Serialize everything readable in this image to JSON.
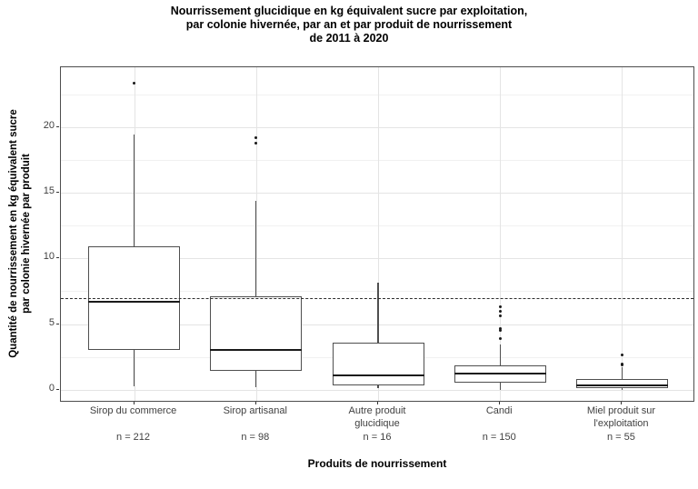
{
  "title": {
    "lines": [
      "Nourrissement glucidique en kg équivalent sucre par exploitation,",
      "par colonie hivernée, par an et par produit de nourrissement",
      "de 2011 à 2020"
    ]
  },
  "y_axis": {
    "title_lines": [
      "Quantité de nourrissement en kg équivalent sucre",
      "par colonie hivernée par produit"
    ],
    "major_ticks": [
      0,
      5,
      10,
      15,
      20
    ],
    "minor_ticks": [
      2.5,
      7.5,
      12.5,
      17.5,
      22.5
    ],
    "range": [
      -1.0,
      24.6
    ]
  },
  "x_axis": {
    "title": "Produits de nourrissement"
  },
  "reference_line": {
    "value": 7,
    "style": "dashed"
  },
  "colors": {
    "panel_border": "#4d4d4d",
    "grid_major": "#e4e4e4",
    "grid_minor": "#f1f1f1",
    "box_border": "#4f4f4f",
    "median": "#1a1a1a",
    "outlier": "#1a1a1a",
    "reference": "#2e2e2e",
    "tick_text": "#404040",
    "title_text": "#000000"
  },
  "chart_data": {
    "type": "boxplot",
    "title": "Nourrissement glucidique en kg équivalent sucre par exploitation, par colonie hivernée, par an et par produit de nourrissement de 2011 à 2020",
    "xlabel": "Produits de nourrissement",
    "ylabel": "Quantité de nourrissement en kg équivalent sucre par colonie hivernée par produit",
    "ylim": [
      -1.0,
      24.6
    ],
    "grid": true,
    "reference_line_y": 7,
    "categories": [
      "Sirop du commerce",
      "Sirop artisanal",
      "Autre produit glucidique",
      "Candi",
      "Miel produit sur l'exploitation"
    ],
    "boxes": [
      {
        "label_lines": [
          "Sirop du commerce"
        ],
        "n_label": "n = 212",
        "whisker_low": 0.25,
        "q1": 3.05,
        "median": 6.7,
        "q3": 10.9,
        "whisker_high": 19.5,
        "outliers": [
          23.4
        ]
      },
      {
        "label_lines": [
          "Sirop artisanal"
        ],
        "n_label": "n = 98",
        "whisker_low": 0.2,
        "q1": 1.4,
        "median": 3.05,
        "q3": 7.1,
        "whisker_high": 14.4,
        "outliers": [
          18.8,
          19.2
        ]
      },
      {
        "label_lines": [
          "Autre produit",
          "glucidique"
        ],
        "n_label": "n = 16",
        "whisker_low": 0.1,
        "q1": 0.3,
        "median": 1.1,
        "q3": 3.6,
        "whisker_high": 8.15,
        "outliers": []
      },
      {
        "label_lines": [
          "Candi"
        ],
        "n_label": "n = 150",
        "whisker_low": 0.0,
        "q1": 0.5,
        "median": 1.2,
        "q3": 1.85,
        "whisker_high": 3.45,
        "outliers": [
          3.9,
          4.5,
          4.65,
          5.6,
          5.95,
          6.3
        ]
      },
      {
        "label_lines": [
          "Miel produit sur",
          "l'exploitation"
        ],
        "n_label": "n = 55",
        "whisker_low": 0.0,
        "q1": 0.08,
        "median": 0.3,
        "q3": 0.78,
        "whisker_high": 1.7,
        "outliers": [
          1.85,
          1.95,
          2.65
        ]
      }
    ]
  }
}
